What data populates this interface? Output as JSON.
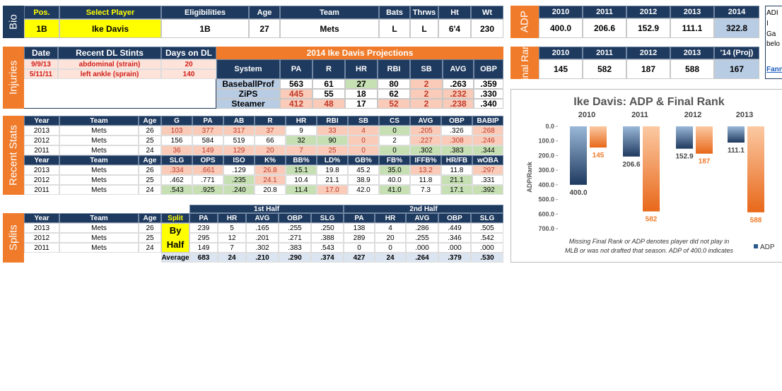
{
  "bio": {
    "label": "Bio",
    "headers": [
      "Pos.",
      "Select Player",
      "Eligibilities",
      "Age",
      "Team",
      "Bats",
      "Thrws",
      "Ht",
      "Wt"
    ],
    "values": [
      "1B",
      "Ike Davis",
      "1B",
      "27",
      "Mets",
      "L",
      "L",
      "6'4",
      "230"
    ]
  },
  "adp": {
    "label": "ADP",
    "headers": [
      "2010",
      "2011",
      "2012",
      "2013",
      "2014"
    ],
    "values": [
      "400.0",
      "206.6",
      "152.9",
      "111.1",
      "322.8"
    ]
  },
  "final_rank": {
    "label": "Final Rank",
    "headers": [
      "2010",
      "2011",
      "2012",
      "2013",
      "'14 (Proj)"
    ],
    "values": [
      "145",
      "582",
      "187",
      "588",
      "167"
    ]
  },
  "side_note": [
    "ADI",
    "I",
    "Ga",
    "belo",
    "Fann"
  ],
  "injuries": {
    "label": "Injuries",
    "headers": [
      "Date",
      "Recent DL Stints",
      "Days on DL"
    ],
    "rows": [
      [
        "9/9/13",
        "abdominal (strain)",
        "20"
      ],
      [
        "5/11/11",
        "left ankle (sprain)",
        "140"
      ]
    ]
  },
  "projections": {
    "title": "2014 Ike Davis Projections",
    "headers": [
      "System",
      "PA",
      "R",
      "HR",
      "RBI",
      "SB",
      "AVG",
      "OBP"
    ],
    "rows": [
      [
        "BaseballProf",
        "563",
        "61",
        "27",
        "80",
        "2",
        ".263",
        ".359"
      ],
      [
        "ZiPS",
        "445",
        "55",
        "18",
        "62",
        "2",
        ".232",
        ".330"
      ],
      [
        "Steamer",
        "412",
        "48",
        "17",
        "52",
        "2",
        ".238",
        ".340"
      ]
    ]
  },
  "recent_stats": {
    "label": "Recent Stats",
    "headers": [
      "Year",
      "Team",
      "Age",
      "G",
      "PA",
      "AB",
      "R",
      "HR",
      "RBI",
      "SB",
      "CS",
      "AVG",
      "OBP",
      "BABIP"
    ],
    "rows": [
      [
        "2013",
        "Mets",
        "26",
        "103",
        "377",
        "317",
        "37",
        "9",
        "33",
        "4",
        "0",
        ".205",
        ".326",
        ".268"
      ],
      [
        "2012",
        "Mets",
        "25",
        "156",
        "584",
        "519",
        "66",
        "32",
        "90",
        "0",
        "2",
        ".227",
        ".308",
        ".246"
      ],
      [
        "2011",
        "Mets",
        "24",
        "36",
        "149",
        "129",
        "20",
        "7",
        "25",
        "0",
        "0",
        ".302",
        ".383",
        ".344"
      ]
    ],
    "headers2": [
      "Year",
      "Team",
      "Age",
      "SLG",
      "OPS",
      "ISO",
      "K%",
      "BB%",
      "LD%",
      "GB%",
      "FB%",
      "IFFB%",
      "HR/FB",
      "wOBA"
    ],
    "rows2": [
      [
        "2013",
        "Mets",
        "26",
        ".334",
        ".661",
        ".129",
        "26.8",
        "15.1",
        "19.8",
        "45.2",
        "35.0",
        "13.2",
        "11.8",
        ".297"
      ],
      [
        "2012",
        "Mets",
        "25",
        ".462",
        ".771",
        ".235",
        "24.1",
        "10.4",
        "21.1",
        "38.9",
        "40.0",
        "11.8",
        "21.1",
        ".331"
      ],
      [
        "2011",
        "Mets",
        "24",
        ".543",
        ".925",
        ".240",
        "20.8",
        "11.4",
        "17.0",
        "42.0",
        "41.0",
        "7.3",
        "17.1",
        ".392"
      ]
    ]
  },
  "splits": {
    "label": "Splits",
    "groups": [
      "1st Half",
      "2nd Half"
    ],
    "headers": [
      "Year",
      "Team",
      "Age",
      "Split",
      "PA",
      "HR",
      "AVG",
      "OBP",
      "SLG",
      "PA",
      "HR",
      "AVG",
      "OBP",
      "SLG"
    ],
    "split": "By Half",
    "rows": [
      [
        "2013",
        "Mets",
        "26",
        "239",
        "5",
        ".165",
        ".255",
        ".250",
        "138",
        "4",
        ".286",
        ".449",
        ".505"
      ],
      [
        "2012",
        "Mets",
        "25",
        "295",
        "12",
        ".201",
        ".271",
        ".388",
        "289",
        "20",
        ".255",
        ".346",
        ".542"
      ],
      [
        "2011",
        "Mets",
        "24",
        "149",
        "7",
        ".302",
        ".383",
        ".543",
        "0",
        "0",
        ".000",
        ".000",
        ".000"
      ]
    ],
    "average_label": "Average",
    "average": [
      "683",
      "24",
      ".210",
      ".290",
      ".374",
      "427",
      "24",
      ".264",
      ".379",
      ".530"
    ]
  },
  "chart": {
    "type": "bar",
    "title": "Ike Davis: ADP & Final Rank",
    "y_label": "ADP/Rank",
    "categories": [
      "2010",
      "2011",
      "2012",
      "2013"
    ],
    "series": [
      {
        "name": "ADP",
        "color": "#2a5a8c",
        "values": [
          400,
          206.6,
          152.9,
          111.1
        ],
        "value_labels": [
          "400.0",
          "206.6",
          "152.9",
          "111.1"
        ]
      },
      {
        "color": "#f07b2a",
        "values": [
          145,
          582,
          187,
          588
        ]
      }
    ],
    "ylim": [
      0,
      700
    ],
    "y_reversed": true,
    "yticks": [
      {
        "value": 0,
        "label": "0.0"
      },
      {
        "value": 100,
        "label": "100.0"
      },
      {
        "value": 200,
        "label": "200.0"
      },
      {
        "value": 300,
        "label": "300.0"
      },
      {
        "value": 400,
        "label": "400.0"
      },
      {
        "value": 500,
        "label": "500.0"
      },
      {
        "value": 600,
        "label": "600.0"
      },
      {
        "value": 700,
        "label": "700.0"
      }
    ],
    "note": [
      "Missing Final Rank or ADP denotes player did not play in",
      "MLB or was not drafted that season. ADP of 400.0 indicates"
    ]
  }
}
